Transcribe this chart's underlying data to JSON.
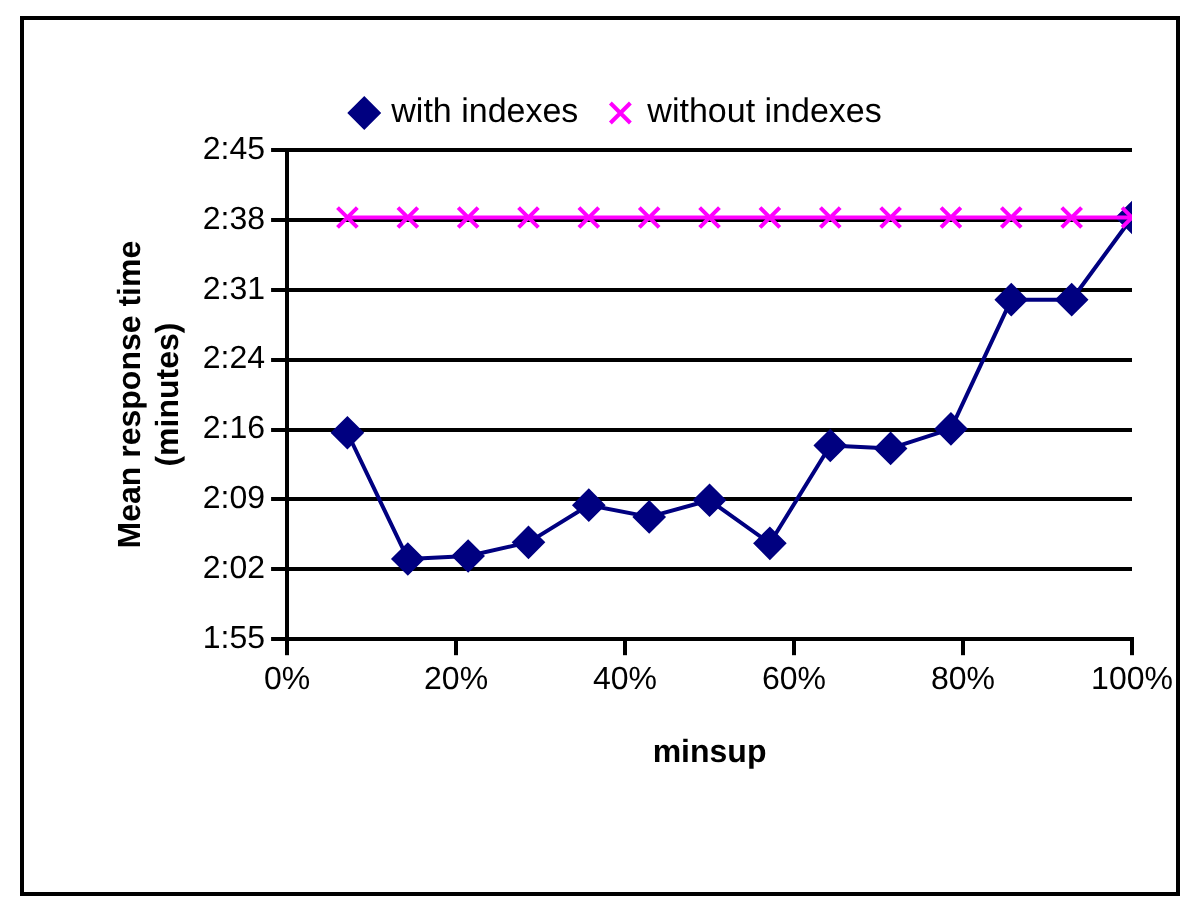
{
  "chart_data": {
    "type": "line",
    "xlabel": "minsup",
    "ylabel": "Mean response time\n(minutes)",
    "x": [
      7.14,
      14.29,
      21.43,
      28.57,
      35.71,
      42.86,
      50,
      57.14,
      64.29,
      71.43,
      78.57,
      85.71,
      92.86,
      100
    ],
    "series": [
      {
        "name": "with indexes",
        "color": "#000080",
        "marker": "diamond",
        "values": [
          136.1,
          123.2,
          123.5,
          124.9,
          128.7,
          127.5,
          129.2,
          124.8,
          134.8,
          134.5,
          136.5,
          149.7,
          149.7,
          158.1
        ]
      },
      {
        "name": "without indexes",
        "color": "#ff00ff",
        "marker": "cross",
        "values": [
          158.1,
          158.1,
          158.1,
          158.1,
          158.1,
          158.1,
          158.1,
          158.1,
          158.1,
          158.1,
          158.1,
          158.1,
          158.1,
          158.1
        ]
      }
    ],
    "xlim": [
      0,
      100
    ],
    "xticks": [
      {
        "value": 0,
        "label": "0%"
      },
      {
        "value": 20,
        "label": "20%"
      },
      {
        "value": 40,
        "label": "40%"
      },
      {
        "value": 60,
        "label": "60%"
      },
      {
        "value": 80,
        "label": "80%"
      },
      {
        "value": 100,
        "label": "100%"
      }
    ],
    "ylim": [
      115,
      165
    ],
    "yticks": [
      {
        "value": 115,
        "label": "1:55"
      },
      {
        "value": 122.14,
        "label": "2:02"
      },
      {
        "value": 129.29,
        "label": "2:09"
      },
      {
        "value": 136.43,
        "label": "2:16"
      },
      {
        "value": 143.57,
        "label": "2:24"
      },
      {
        "value": 150.71,
        "label": "2:31"
      },
      {
        "value": 157.86,
        "label": "2:38"
      },
      {
        "value": 165,
        "label": "2:45"
      }
    ],
    "grid": "y",
    "legend": "top",
    "line_style": "solid"
  }
}
